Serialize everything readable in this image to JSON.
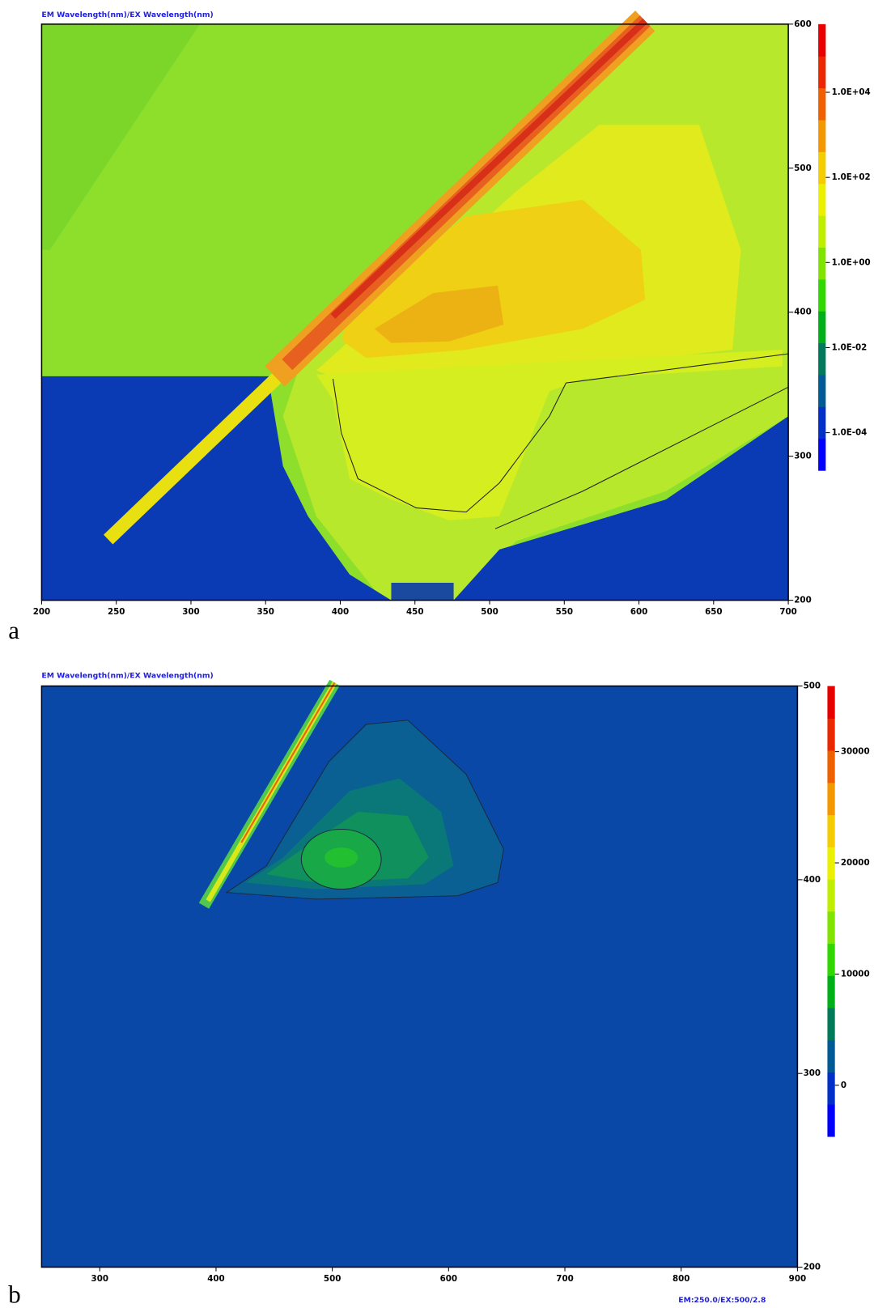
{
  "chart_data": [
    {
      "type": "contour",
      "panel_label": "a",
      "title": "EM Wavelength(nm)/EX Wavelength(nm)",
      "xlim": [
        200,
        700
      ],
      "xticks": [
        200,
        250,
        300,
        350,
        400,
        450,
        500,
        550,
        600,
        650,
        700
      ],
      "ylim": [
        200,
        600
      ],
      "yticks": [
        200,
        300,
        400,
        500,
        600
      ],
      "colorbar": {
        "scale": "log",
        "lim": [
          1.3e-05,
          400000
        ],
        "ticks": [
          {
            "value": 0.0001,
            "label": "1.0E-04"
          },
          {
            "value": 0.01,
            "label": "1.0E-02"
          },
          {
            "value": 1,
            "label": "1.0E+00"
          },
          {
            "value": 100,
            "label": "1.0E+02"
          },
          {
            "value": 10000,
            "label": "1.0E+04"
          }
        ],
        "colors": [
          "#0000ff",
          "#0030c8",
          "#005a96",
          "#007a5a",
          "#00b018",
          "#30d800",
          "#80e400",
          "#c0ee00",
          "#eaf000",
          "#f4cc00",
          "#f49800",
          "#f06000",
          "#ec2800",
          "#e80000"
        ]
      }
    },
    {
      "type": "contour",
      "panel_label": "b",
      "title": "EM Wavelength(nm)/EX Wavelength(nm)",
      "footer": "EM:250.0/EX:500/2.8",
      "xlim": [
        250,
        900
      ],
      "xticks": [
        300,
        400,
        500,
        600,
        700,
        800,
        900
      ],
      "ylim": [
        200,
        500
      ],
      "yticks": [
        200,
        300,
        400,
        500
      ],
      "colorbar": {
        "scale": "linear",
        "lim": [
          -4600,
          35900
        ],
        "ticks": [
          0,
          10000,
          20000,
          30000
        ],
        "colors": [
          "#0000ff",
          "#0030c8",
          "#005a96",
          "#007a5a",
          "#00b018",
          "#30d800",
          "#80e400",
          "#c0ee00",
          "#eaf000",
          "#f4cc00",
          "#f49800",
          "#f06000",
          "#ec2800",
          "#e80000"
        ]
      }
    }
  ]
}
